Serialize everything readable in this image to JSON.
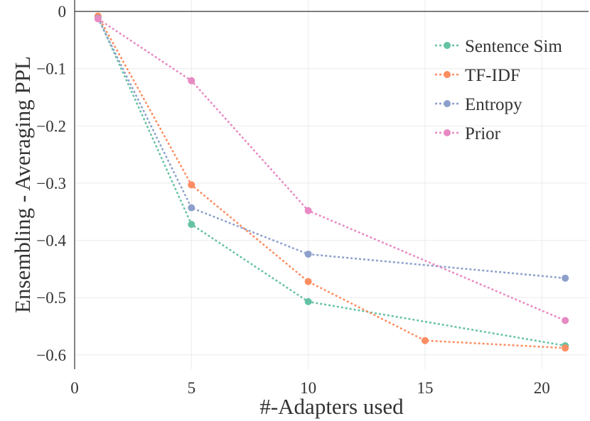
{
  "chart_data": {
    "type": "line",
    "title": "",
    "xlabel": "#-Adapters used",
    "ylabel": "Ensembling - Averaging PPL",
    "xlim": [
      0,
      22
    ],
    "ylim": [
      -0.625,
      0.02
    ],
    "xticks": [
      0,
      5,
      10,
      15,
      20
    ],
    "yticks": [
      0,
      -0.1,
      -0.2,
      -0.3,
      -0.4,
      -0.5,
      -0.6
    ],
    "xtick_labels": [
      "0",
      "5",
      "10",
      "15",
      "20"
    ],
    "ytick_labels": [
      "0",
      "−0.1",
      "−0.2",
      "−0.3",
      "−0.4",
      "−0.5",
      "−0.6"
    ],
    "grid": true,
    "legend_position": "top-right",
    "line_style": "dotted",
    "series": [
      {
        "name": "Sentence Sim",
        "color": "#66c2a5",
        "x": [
          1,
          5,
          10,
          21
        ],
        "y": [
          -0.01,
          -0.372,
          -0.507,
          -0.584
        ]
      },
      {
        "name": "TF-IDF",
        "color": "#fc8d62",
        "x": [
          1,
          5,
          10,
          15,
          21
        ],
        "y": [
          -0.008,
          -0.303,
          -0.472,
          -0.575,
          -0.588
        ]
      },
      {
        "name": "Entropy",
        "color": "#8da0cb",
        "x": [
          1,
          5,
          10,
          21
        ],
        "y": [
          -0.012,
          -0.343,
          -0.424,
          -0.466
        ]
      },
      {
        "name": "Prior",
        "color": "#e78ac3",
        "x": [
          1,
          5,
          10,
          21
        ],
        "y": [
          -0.013,
          -0.121,
          -0.348,
          -0.54
        ]
      }
    ]
  }
}
